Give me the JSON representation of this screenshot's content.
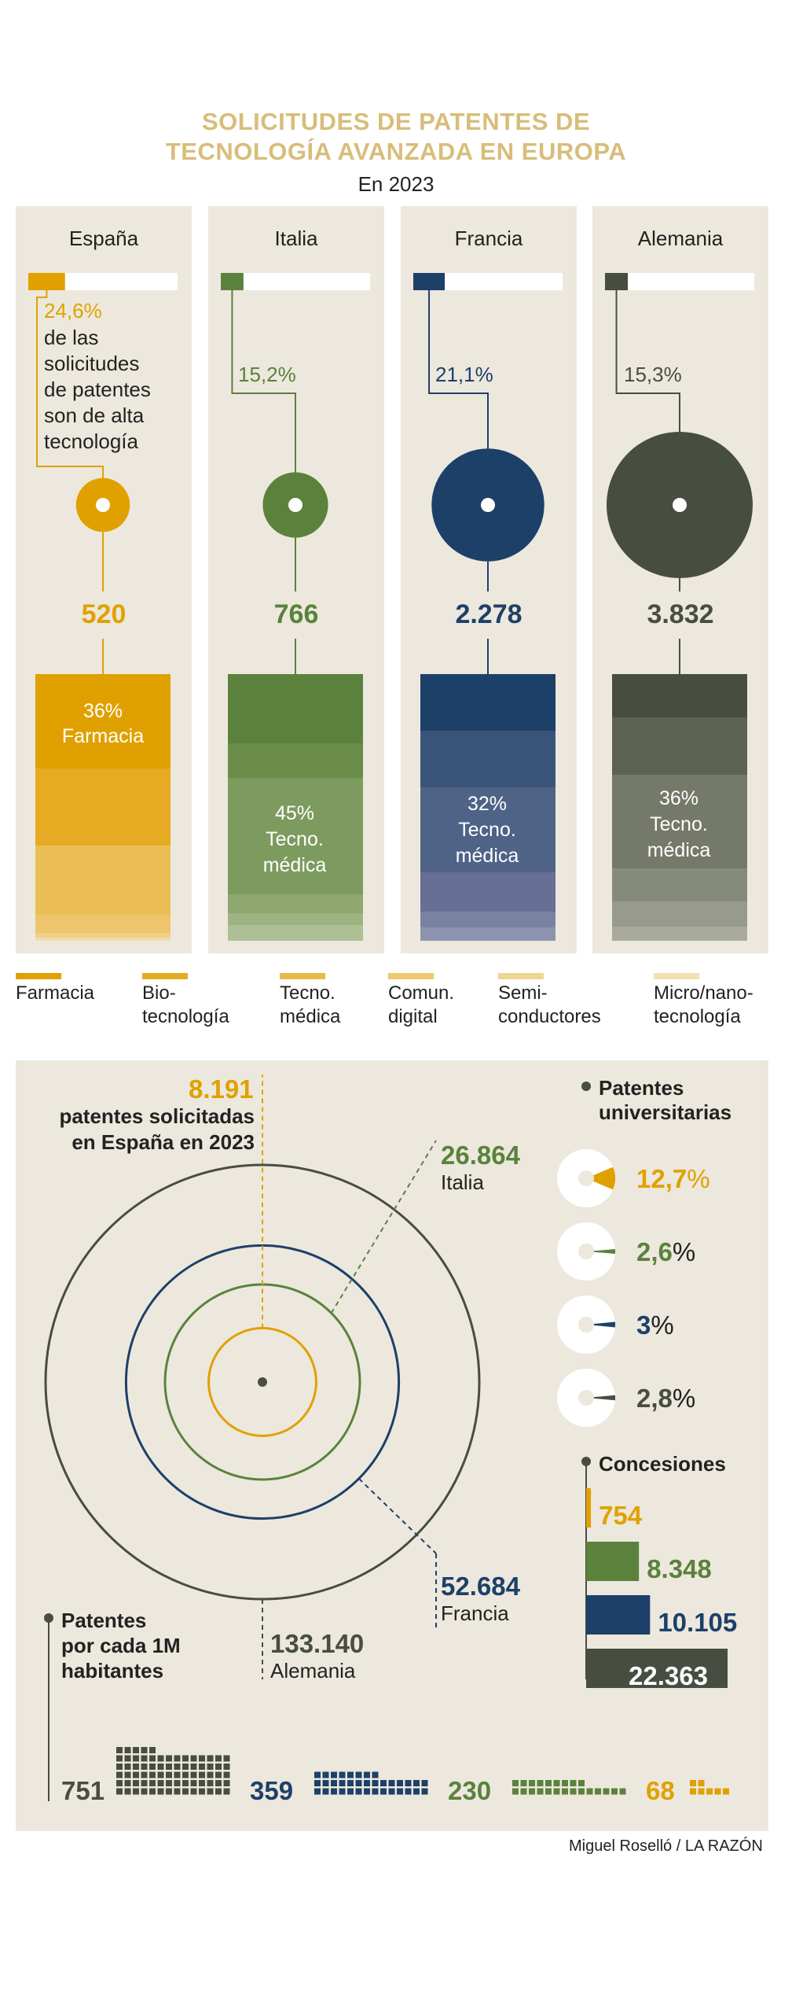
{
  "header": {
    "title_line1": "SOLICITUDES DE PATENTES DE",
    "title_line2": "TECNOLOGÍA AVANZADA EN EUROPA",
    "subtitle": "En 2023"
  },
  "countries": [
    {
      "name": "España",
      "high_tech_pct": "24,6%",
      "total_label": "520",
      "color": "#e0a100",
      "segment_label_1": "36%",
      "segment_label_2": "Farmacia"
    },
    {
      "name": "Italia",
      "high_tech_pct": "15,2%",
      "total_label": "766",
      "color": "#5a823c",
      "segment_label_1": "45%",
      "segment_label_2": "Tecno.",
      "segment_label_3": "médica"
    },
    {
      "name": "Francia",
      "high_tech_pct": "21,1%",
      "total_label": "2.278",
      "color": "#1d4069",
      "segment_label_1": "32%",
      "segment_label_2": "Tecno.",
      "segment_label_3": "médica"
    },
    {
      "name": "Alemania",
      "high_tech_pct": "15,3%",
      "total_label": "3.832",
      "color": "#484d41",
      "segment_label_1": "36%",
      "segment_label_2": "Tecno.",
      "segment_label_3": "médica"
    }
  ],
  "spain_desc": {
    "l1": "de las",
    "l2": "solicitudes",
    "l3": "de patentes",
    "l4": "son de alta",
    "l5": "tecnología"
  },
  "legend": [
    {
      "l1": "Farmacia",
      "l2": "",
      "color": "#e0a100"
    },
    {
      "l1": "Bio-",
      "l2": "tecnología",
      "color": "#e4aa22"
    },
    {
      "l1": "Tecno.",
      "l2": "médica",
      "color": "#e8b84a"
    },
    {
      "l1": "Comun.",
      "l2": "digital",
      "color": "#edc870"
    },
    {
      "l1": "Semi-",
      "l2": "conductores",
      "color": "#f0d592"
    },
    {
      "l1": "Micro/nano-",
      "l2": "tecnología",
      "color": "#f3e0b0"
    }
  ],
  "total_patents": {
    "spain_value": "8.191",
    "spain_text1": "patentes solicitadas",
    "spain_text2": "en España en 2023",
    "italy_value": "26.864",
    "italy_name": "Italia",
    "france_value": "52.684",
    "france_name": "Francia",
    "germany_value": "133.140",
    "germany_name": "Alemania"
  },
  "university": {
    "title1": "Patentes",
    "title2": "universitarias",
    "items": [
      {
        "label": "12,7",
        "color": "#e0a100"
      },
      {
        "label": "2,6",
        "color": "#5a823c"
      },
      {
        "label": "3",
        "color": "#1d4069"
      },
      {
        "label": "2,8",
        "color": "#484d41"
      }
    ],
    "pct_sign": "%"
  },
  "concessions": {
    "title": "Concesiones",
    "items": [
      {
        "label": "754",
        "color": "#e0a100"
      },
      {
        "label": "8.348",
        "color": "#5a823c"
      },
      {
        "label": "10.105",
        "color": "#1d4069"
      },
      {
        "label": "22.363",
        "color": "#484d41"
      }
    ]
  },
  "per_million": {
    "title1": "Patentes",
    "title2": "por cada 1M",
    "title3": "habitantes",
    "items": [
      {
        "label": "751",
        "color": "#484d41"
      },
      {
        "label": "359",
        "color": "#1d4069"
      },
      {
        "label": "230",
        "color": "#5a823c"
      },
      {
        "label": "68",
        "color": "#e0a100"
      }
    ]
  },
  "credit": "Miguel Roselló / LA RAZÓN",
  "chart_data": [
    {
      "type": "bar",
      "categories": [
        "España",
        "Italia",
        "Francia",
        "Alemania"
      ],
      "values": [
        520,
        766,
        2278,
        3832
      ],
      "high_tech_share_pct": [
        24.6,
        15.2,
        21.1,
        15.3
      ],
      "largest_segment": [
        {
          "country": "España",
          "label": "Farmacia",
          "pct": 36
        },
        {
          "country": "Italia",
          "label": "Tecno. médica",
          "pct": 45
        },
        {
          "country": "Francia",
          "label": "Tecno. médica",
          "pct": 32
        },
        {
          "country": "Alemania",
          "label": "Tecno. médica",
          "pct": 36
        }
      ],
      "legend": [
        "Farmacia",
        "Biotecnología",
        "Tecno. médica",
        "Comun. digital",
        "Semiconductores",
        "Micro/nanotecnología"
      ]
    },
    {
      "type": "bar",
      "categories": [
        "España",
        "Italia",
        "Francia",
        "Alemania"
      ],
      "values": [
        8191,
        26864,
        52684,
        133140
      ]
    },
    {
      "type": "pie",
      "categories": [
        "España",
        "Italia",
        "Francia",
        "Alemania"
      ],
      "values": [
        12.7,
        2.6,
        3,
        2.8
      ]
    },
    {
      "type": "bar",
      "categories": [
        "España",
        "Italia",
        "Francia",
        "Alemania"
      ],
      "values": [
        754,
        8348,
        10105,
        22363
      ]
    },
    {
      "type": "bar",
      "categories": [
        "Alemania",
        "Francia",
        "Italia",
        "España"
      ],
      "values": [
        751,
        359,
        230,
        68
      ]
    }
  ]
}
